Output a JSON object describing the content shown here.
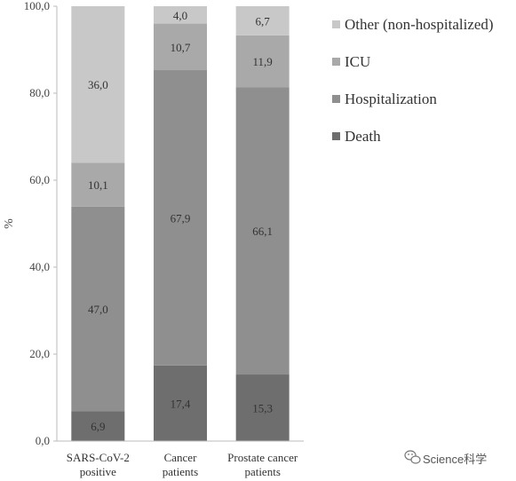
{
  "chart_data": {
    "type": "bar",
    "stacked": true,
    "ylabel": "%",
    "ylim": [
      0,
      100
    ],
    "yticks": [
      "0,0",
      "20,0",
      "40,0",
      "60,0",
      "80,0",
      "100,0"
    ],
    "categories": [
      [
        "SARS-CoV-2",
        "positive"
      ],
      [
        "Cancer",
        "patients"
      ],
      [
        "Prostate cancer",
        "patients"
      ]
    ],
    "series": [
      {
        "name": "Death",
        "color": "#6e6e6e",
        "values": [
          6.9,
          17.4,
          15.3
        ],
        "labels": [
          "6,9",
          "17,4",
          "15,3"
        ]
      },
      {
        "name": "Hospitalization",
        "color": "#8f8f8f",
        "values": [
          47.0,
          67.9,
          66.1
        ],
        "labels": [
          "47,0",
          "67,9",
          "66,1"
        ]
      },
      {
        "name": "ICU",
        "color": "#a9a9a9",
        "values": [
          10.1,
          10.7,
          11.9
        ],
        "labels": [
          "10,1",
          "10,7",
          "11,9"
        ]
      },
      {
        "name": "Other (non-hospitalized)",
        "color": "#c8c8c8",
        "values": [
          36.0,
          4.0,
          6.7
        ],
        "labels": [
          "36,0",
          "4,0",
          "6,7"
        ]
      }
    ],
    "legend_order": [
      3,
      2,
      1,
      0
    ],
    "legend_position": "right",
    "grid": false
  },
  "watermark": {
    "text": "Science科学",
    "icon": "wechat-icon"
  }
}
